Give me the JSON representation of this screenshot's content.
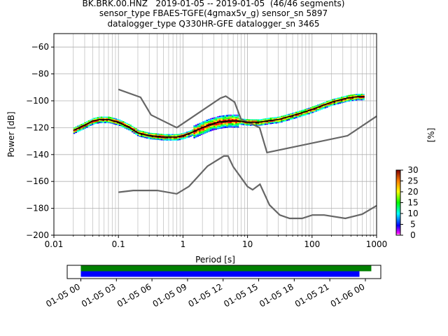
{
  "figure": {
    "title_lines": [
      "BK.BRK.00.HNZ   2019-01-05 -- 2019-01-05  (46/46 segments)",
      "sensor_type FBAES-TGFE(4gmax5v_g) sensor_sn 5897",
      "datalogger_type Q330HR-GFE datalogger_sn 3465"
    ]
  },
  "chart_data": [
    {
      "type": "heatmap",
      "xlabel": "Period [s]",
      "ylabel": "Power [dB]",
      "xscale": "log",
      "xlim": [
        0.01,
        1000
      ],
      "ylim": [
        -200,
        -50
      ],
      "x_ticks": [
        0.01,
        0.1,
        1,
        10,
        100,
        1000
      ],
      "x_tick_labels": [
        "0.01",
        "0.1",
        "1",
        "10",
        "100",
        "1000"
      ],
      "y_ticks": [
        -200,
        -180,
        -160,
        -140,
        -120,
        -100,
        -80,
        -60
      ],
      "y_tick_labels": [
        "−200",
        "−180",
        "−160",
        "−140",
        "−120",
        "−100",
        "−80",
        "−60"
      ],
      "grid": true,
      "colorbar": {
        "label": "[%]",
        "range": [
          0,
          30
        ],
        "ticks": [
          0,
          5,
          10,
          15,
          20,
          25,
          30
        ],
        "colormap": "pqlx"
      },
      "mode_curve": {
        "x": [
          0.02,
          0.03,
          0.04,
          0.05,
          0.07,
          0.1,
          0.15,
          0.2,
          0.3,
          0.5,
          0.8,
          1.0,
          1.3,
          1.8,
          2.5,
          3.5,
          5,
          7,
          10,
          15,
          20,
          30,
          50,
          80,
          120,
          200,
          350,
          500,
          650
        ],
        "y": [
          -122,
          -118,
          -115,
          -114,
          -114,
          -116,
          -120,
          -124,
          -126,
          -127,
          -127,
          -126,
          -124,
          -121,
          -118,
          -116,
          -115,
          -115,
          -116,
          -116,
          -115,
          -114,
          -111,
          -108,
          -105,
          -101,
          -98,
          -97,
          -97
        ]
      },
      "noise_models": [
        {
          "x": [
            0.1,
            0.22,
            0.32,
            0.8,
            3.8,
            4.6,
            6.3,
            7.9,
            15.4,
            20,
            354.8,
            1000
          ],
          "y": [
            -91.5,
            -97.4,
            -110.5,
            -120.0,
            -98.0,
            -96.5,
            -101.0,
            -113.5,
            -120.0,
            -138.5,
            -126.0,
            -111.5
          ]
        },
        {
          "x": [
            0.1,
            0.17,
            0.4,
            0.8,
            1.24,
            2.4,
            4.3,
            5.0,
            6.0,
            10.0,
            12.0,
            15.6,
            21.9,
            31.6,
            45.0,
            70.0,
            101.0,
            154.0,
            328.0,
            600.0,
            1000
          ],
          "y": [
            -168.0,
            -166.7,
            -166.7,
            -169.2,
            -163.7,
            -148.6,
            -141.1,
            -141.1,
            -149.0,
            -163.8,
            -166.2,
            -162.1,
            -177.5,
            -185.0,
            -187.5,
            -187.5,
            -185.0,
            -185.0,
            -187.5,
            -184.4,
            -178.0
          ]
        }
      ]
    },
    {
      "type": "bar",
      "x_tick_labels": [
        "01-05 00",
        "01-05 03",
        "01-05 06",
        "01-05 09",
        "01-05 12",
        "01-05 15",
        "01-05 18",
        "01-05 21",
        "01-06 00"
      ],
      "series": [
        {
          "color": "#008000",
          "start_hours": 0.0,
          "end_hours": 24.5
        },
        {
          "color": "#0000ff",
          "start_hours": 0.0,
          "end_hours": 23.5
        }
      ]
    }
  ]
}
